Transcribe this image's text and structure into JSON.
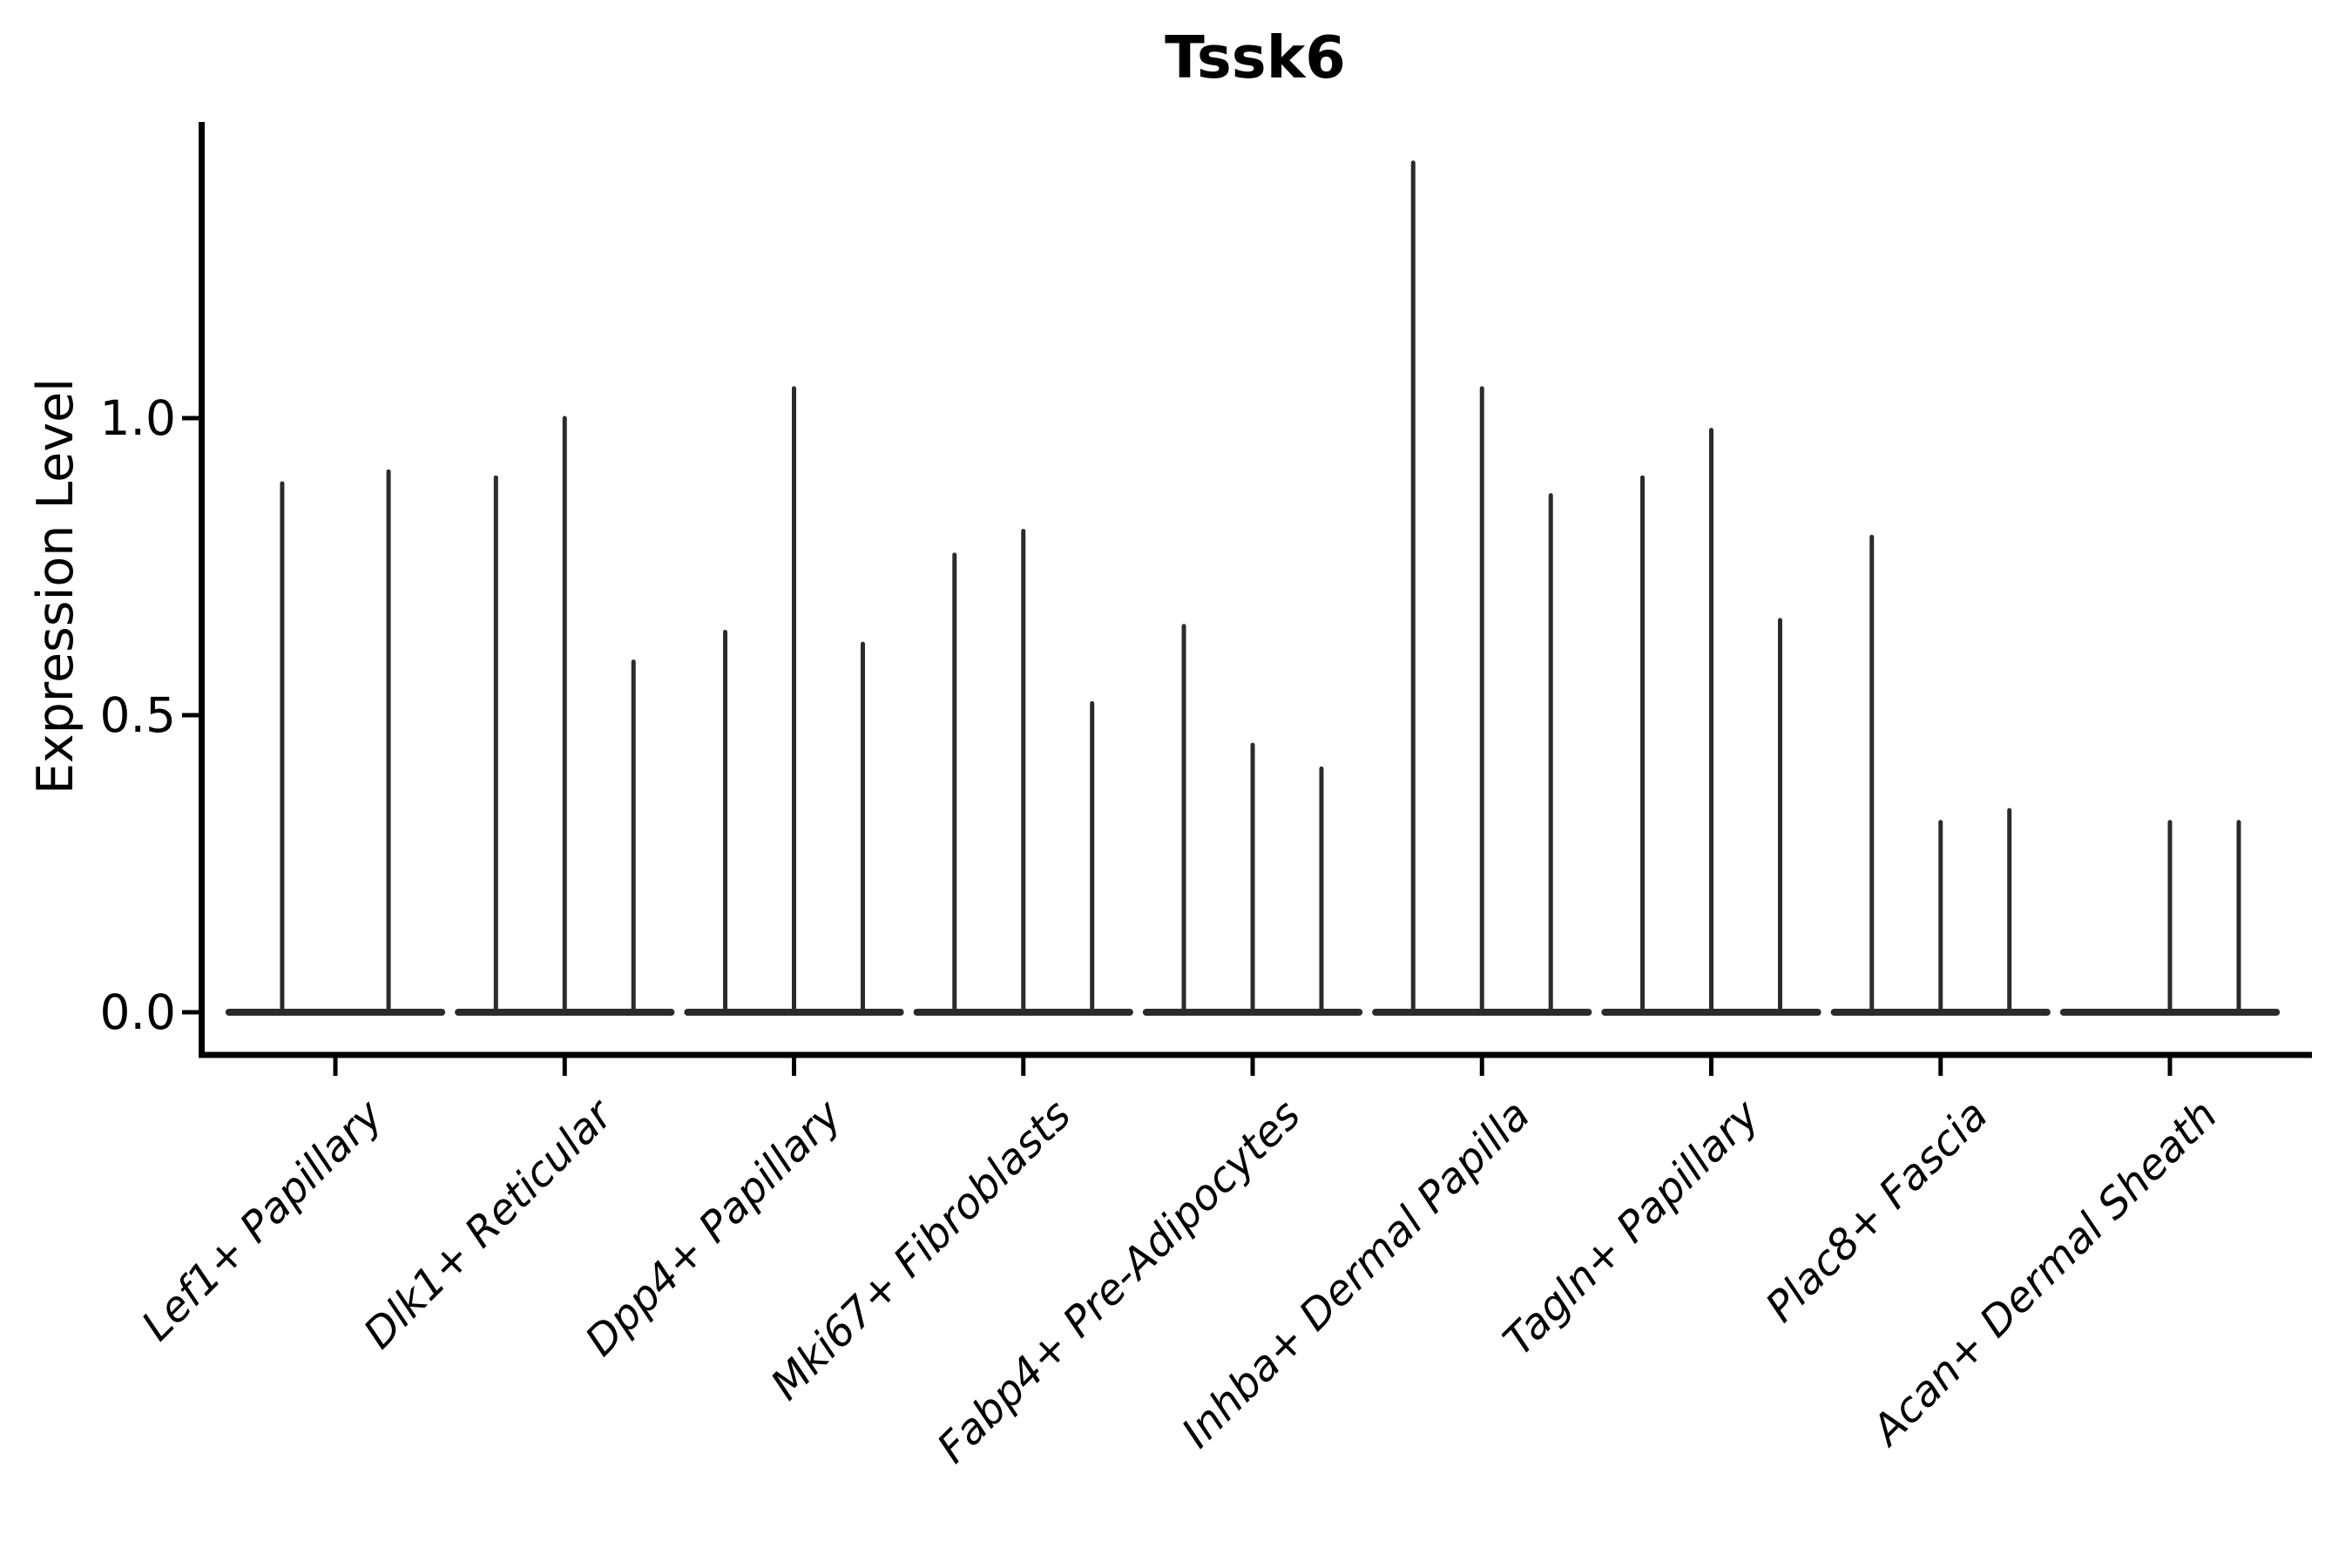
{
  "page": {
    "background": "#ffffff"
  },
  "header": {
    "title": "Tssk6"
  },
  "chart_data": {
    "type": "violin",
    "title": "Tssk6",
    "xlabel": "",
    "ylabel": "Expression Level",
    "yticks": [
      0.0,
      0.5,
      1.0
    ],
    "ytick_labels": [
      "0.0",
      "0.5",
      "1.0"
    ],
    "ylim": [
      -0.07,
      1.5
    ],
    "grid": false,
    "legend_position": "none",
    "colors": {
      "violin_stroke": "#2b2b2b",
      "axis": "#000000",
      "text": "#000000",
      "background": "#ffffff"
    },
    "categories": [
      "Lef1+ Papillary",
      "Dlk1+ Reticular",
      "Dpp4+ Papillary",
      "Mki67+ Fibroblasts",
      "Fabp4+ Pre-Adipocytes",
      "Inhba+ Dermal Papilla",
      "Tagln+ Papillary",
      "Plac8+ Fascia",
      "Acan+ Dermal Sheath"
    ],
    "groups": [
      {
        "category": "Lef1+ Papillary",
        "spikes": [
          {
            "dx": -0.232,
            "max": 0.89
          },
          {
            "dx": 0.232,
            "max": 0.91
          }
        ]
      },
      {
        "category": "Dlk1+ Reticular",
        "spikes": [
          {
            "dx": -0.3,
            "max": 0.9
          },
          {
            "dx": 0.0,
            "max": 1.0
          },
          {
            "dx": 0.3,
            "max": 0.59
          }
        ]
      },
      {
        "category": "Dpp4+ Papillary",
        "spikes": [
          {
            "dx": -0.3,
            "max": 0.64
          },
          {
            "dx": 0.0,
            "max": 1.05
          },
          {
            "dx": 0.3,
            "max": 0.62
          }
        ]
      },
      {
        "category": "Mki67+ Fibroblasts",
        "spikes": [
          {
            "dx": -0.3,
            "max": 0.77
          },
          {
            "dx": 0.0,
            "max": 0.81
          },
          {
            "dx": 0.3,
            "max": 0.52
          }
        ]
      },
      {
        "category": "Fabp4+ Pre-Adipocytes",
        "spikes": [
          {
            "dx": -0.3,
            "max": 0.65
          },
          {
            "dx": 0.0,
            "max": 0.45
          },
          {
            "dx": 0.3,
            "max": 0.41
          }
        ]
      },
      {
        "category": "Inhba+ Dermal Papilla",
        "spikes": [
          {
            "dx": -0.3,
            "max": 1.43
          },
          {
            "dx": 0.0,
            "max": 1.05
          },
          {
            "dx": 0.3,
            "max": 0.87
          }
        ]
      },
      {
        "category": "Tagln+ Papillary",
        "spikes": [
          {
            "dx": -0.3,
            "max": 0.9
          },
          {
            "dx": 0.0,
            "max": 0.98
          },
          {
            "dx": 0.3,
            "max": 0.66
          }
        ]
      },
      {
        "category": "Plac8+ Fascia",
        "spikes": [
          {
            "dx": -0.3,
            "max": 0.8
          },
          {
            "dx": 0.0,
            "max": 0.32
          },
          {
            "dx": 0.3,
            "max": 0.34
          }
        ]
      },
      {
        "category": "Acan+ Dermal Sheath",
        "spikes": [
          {
            "dx": 0.0,
            "max": 0.32
          },
          {
            "dx": 0.3,
            "max": 0.32
          }
        ]
      }
    ],
    "base_bar": {
      "halfwidth_frac": 0.464,
      "value": 0.0
    }
  }
}
